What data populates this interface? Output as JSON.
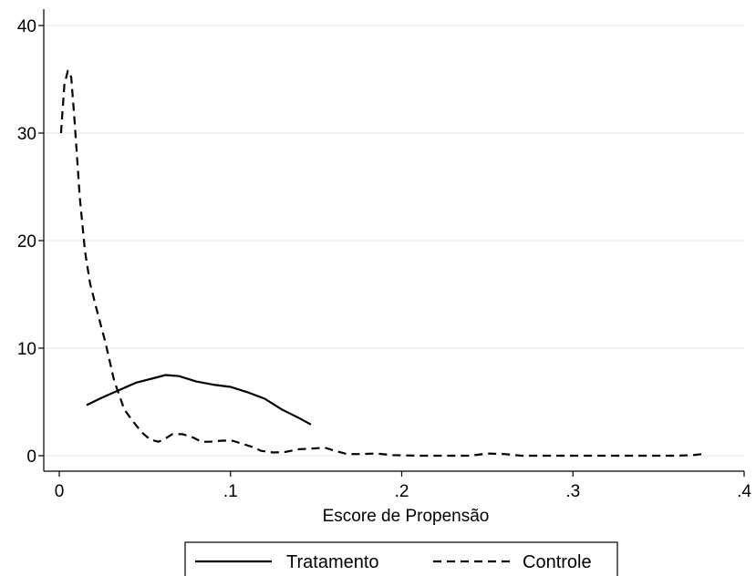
{
  "chart_data": {
    "type": "line",
    "title": "",
    "xlabel": "Escore de Propensão",
    "ylabel": "",
    "xlim": [
      0,
      0.4
    ],
    "ylim": [
      0,
      40
    ],
    "x_ticks": [
      {
        "value": 0,
        "label": "0"
      },
      {
        "value": 0.1,
        "label": ".1"
      },
      {
        "value": 0.2,
        "label": ".2"
      },
      {
        "value": 0.3,
        "label": ".3"
      },
      {
        "value": 0.4,
        "label": ".4"
      }
    ],
    "y_ticks": [
      {
        "value": 0,
        "label": "0"
      },
      {
        "value": 10,
        "label": "10"
      },
      {
        "value": 20,
        "label": "20"
      },
      {
        "value": 30,
        "label": "30"
      },
      {
        "value": 40,
        "label": "40"
      }
    ],
    "grid": "horizontal",
    "legend_position": "bottom",
    "series": [
      {
        "name": "Tratamento",
        "style": "solid",
        "color": "#000000",
        "points": [
          [
            0.016,
            4.7
          ],
          [
            0.025,
            5.4
          ],
          [
            0.035,
            6.1
          ],
          [
            0.045,
            6.8
          ],
          [
            0.055,
            7.2
          ],
          [
            0.062,
            7.5
          ],
          [
            0.07,
            7.4
          ],
          [
            0.08,
            6.9
          ],
          [
            0.09,
            6.6
          ],
          [
            0.1,
            6.4
          ],
          [
            0.11,
            5.9
          ],
          [
            0.12,
            5.3
          ],
          [
            0.13,
            4.3
          ],
          [
            0.14,
            3.5
          ],
          [
            0.147,
            2.9
          ]
        ]
      },
      {
        "name": "Controle",
        "style": "dashed",
        "color": "#000000",
        "points": [
          [
            0.001,
            30
          ],
          [
            0.003,
            34.5
          ],
          [
            0.005,
            35.8
          ],
          [
            0.007,
            35.2
          ],
          [
            0.009,
            31
          ],
          [
            0.012,
            24
          ],
          [
            0.015,
            19
          ],
          [
            0.018,
            16
          ],
          [
            0.022,
            13.5
          ],
          [
            0.027,
            10.5
          ],
          [
            0.032,
            7
          ],
          [
            0.038,
            4.3
          ],
          [
            0.043,
            3.2
          ],
          [
            0.048,
            2.2
          ],
          [
            0.053,
            1.5
          ],
          [
            0.058,
            1.3
          ],
          [
            0.062,
            1.6
          ],
          [
            0.066,
            2.0
          ],
          [
            0.072,
            2.0
          ],
          [
            0.078,
            1.7
          ],
          [
            0.083,
            1.3
          ],
          [
            0.088,
            1.3
          ],
          [
            0.095,
            1.4
          ],
          [
            0.101,
            1.4
          ],
          [
            0.107,
            1.1
          ],
          [
            0.113,
            0.8
          ],
          [
            0.118,
            0.45
          ],
          [
            0.125,
            0.3
          ],
          [
            0.132,
            0.35
          ],
          [
            0.14,
            0.6
          ],
          [
            0.147,
            0.65
          ],
          [
            0.155,
            0.75
          ],
          [
            0.16,
            0.5
          ],
          [
            0.168,
            0.15
          ],
          [
            0.175,
            0.15
          ],
          [
            0.185,
            0.2
          ],
          [
            0.195,
            0.05
          ],
          [
            0.21,
            0.0
          ],
          [
            0.24,
            0.0
          ],
          [
            0.25,
            0.2
          ],
          [
            0.26,
            0.15
          ],
          [
            0.27,
            0.0
          ],
          [
            0.3,
            0.0
          ],
          [
            0.33,
            0.0
          ],
          [
            0.36,
            0.0
          ],
          [
            0.37,
            0.05
          ],
          [
            0.378,
            0.2
          ]
        ]
      }
    ]
  }
}
